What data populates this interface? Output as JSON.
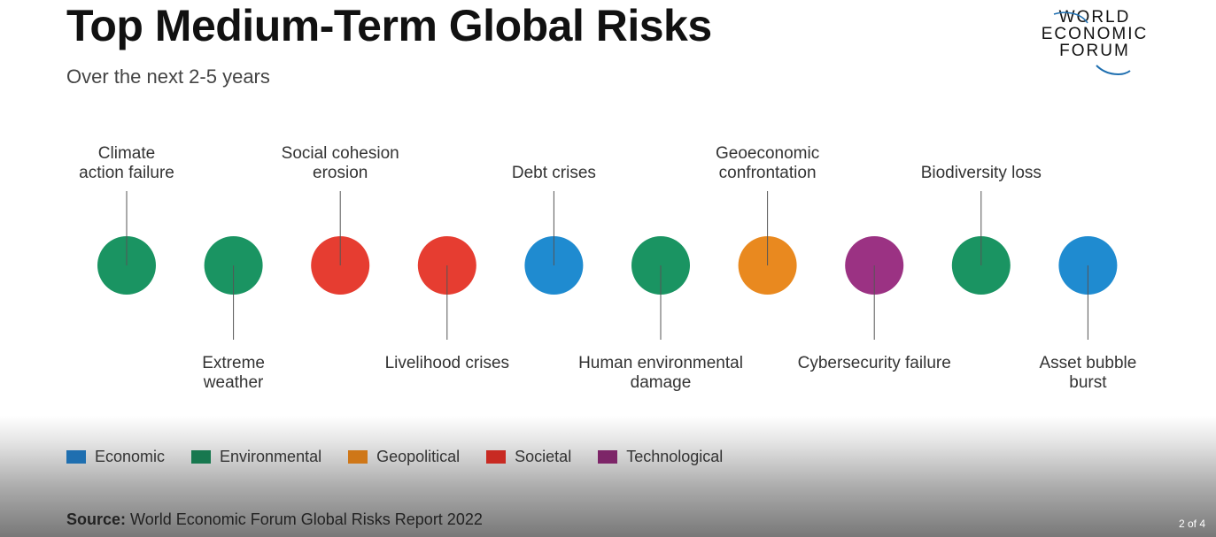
{
  "header": {
    "title": "Top Medium-Term Global Risks",
    "subtitle": "Over the next 2-5 years"
  },
  "logo": {
    "line1": "WORLD",
    "line2": "ECONOMIC",
    "line3": "FORUM",
    "icon": "wef-swoosh-icon"
  },
  "categories": {
    "Economic": "#1f8bd0",
    "Environmental": "#1a9462",
    "Geopolitical": "#e9891f",
    "Societal": "#e63d31",
    "Technological": "#9b3283"
  },
  "risks": [
    {
      "label": [
        "Climate",
        "action failure"
      ],
      "category": "Environmental",
      "side": "top"
    },
    {
      "label": [
        "Extreme",
        "weather"
      ],
      "category": "Environmental",
      "side": "bottom"
    },
    {
      "label": [
        "Social cohesion",
        "erosion"
      ],
      "category": "Societal",
      "side": "top"
    },
    {
      "label": [
        "Livelihood crises"
      ],
      "category": "Societal",
      "side": "bottom"
    },
    {
      "label": [
        "Debt crises"
      ],
      "category": "Economic",
      "side": "top"
    },
    {
      "label": [
        "Human environmental",
        "damage"
      ],
      "category": "Environmental",
      "side": "bottom"
    },
    {
      "label": [
        "Geoeconomic",
        "confrontation"
      ],
      "category": "Geopolitical",
      "side": "top"
    },
    {
      "label": [
        "Cybersecurity failure"
      ],
      "category": "Technological",
      "side": "bottom"
    },
    {
      "label": [
        "Biodiversity loss"
      ],
      "category": "Environmental",
      "side": "top"
    },
    {
      "label": [
        "Asset bubble",
        "burst"
      ],
      "category": "Economic",
      "side": "bottom"
    }
  ],
  "legend": [
    {
      "label": "Economic",
      "color": "#1f6fb0"
    },
    {
      "label": "Environmental",
      "color": "#17784f"
    },
    {
      "label": "Geopolitical",
      "color": "#cf7718"
    },
    {
      "label": "Societal",
      "color": "#c82a22"
    },
    {
      "label": "Technological",
      "color": "#7d2568"
    }
  ],
  "footer": {
    "source_label": "Source:",
    "source_text": " World Economic Forum Global Risks Report 2022",
    "pager": "2 of 4"
  }
}
